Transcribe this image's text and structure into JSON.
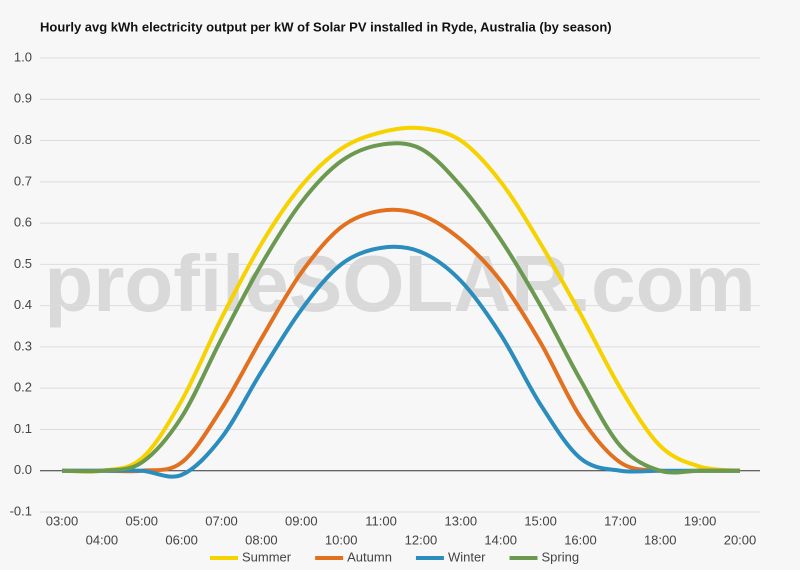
{
  "chart_data": {
    "type": "line",
    "title": "Hourly avg kWh electricity output per kW of Solar PV installed in Ryde, Australia (by season)",
    "watermark": "profileSOLAR.com",
    "categories": [
      "03:00",
      "04:00",
      "05:00",
      "06:00",
      "07:00",
      "08:00",
      "09:00",
      "10:00",
      "11:00",
      "12:00",
      "13:00",
      "14:00",
      "15:00",
      "16:00",
      "17:00",
      "18:00",
      "19:00",
      "20:00"
    ],
    "series": [
      {
        "name": "Summer",
        "color": "#f5d200",
        "values": [
          0,
          0,
          0.03,
          0.17,
          0.37,
          0.55,
          0.69,
          0.78,
          0.82,
          0.83,
          0.8,
          0.7,
          0.55,
          0.38,
          0.2,
          0.06,
          0.01,
          0
        ]
      },
      {
        "name": "Autumn",
        "color": "#e2701f",
        "values": [
          0,
          0,
          0,
          0.02,
          0.15,
          0.32,
          0.48,
          0.59,
          0.63,
          0.62,
          0.56,
          0.46,
          0.31,
          0.13,
          0.02,
          0,
          0,
          0
        ]
      },
      {
        "name": "Winter",
        "color": "#2b8dbd",
        "values": [
          0,
          0,
          0,
          -0.01,
          0.08,
          0.24,
          0.39,
          0.5,
          0.54,
          0.53,
          0.46,
          0.33,
          0.16,
          0.03,
          0,
          0,
          0,
          0
        ]
      },
      {
        "name": "Spring",
        "color": "#6b9950",
        "values": [
          0,
          0,
          0.02,
          0.13,
          0.32,
          0.5,
          0.65,
          0.75,
          0.79,
          0.78,
          0.69,
          0.56,
          0.4,
          0.22,
          0.06,
          0,
          0,
          0
        ]
      }
    ],
    "ylim": [
      -0.1,
      1.0
    ],
    "yticks": [
      -0.1,
      {
        "value": 0,
        "label": "0.0"
      },
      0.1,
      0.2,
      0.3,
      0.4,
      0.5,
      0.6,
      0.7,
      0.8,
      0.9,
      {
        "value": 1,
        "label": "1.0"
      }
    ],
    "grid": true,
    "legend": "bottom"
  }
}
